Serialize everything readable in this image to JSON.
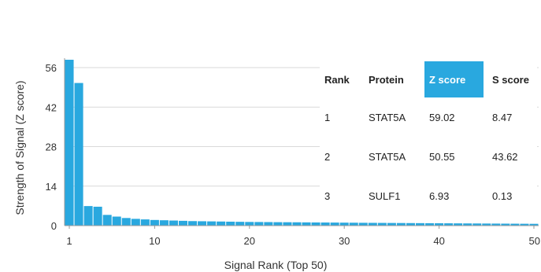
{
  "chart_data": {
    "type": "bar",
    "title": "",
    "xlabel": "Signal Rank (Top 50)",
    "ylabel": "Strength of Signal (Z score)",
    "xlim": [
      1,
      50
    ],
    "ylim": [
      0,
      56
    ],
    "xticks": [
      1,
      10,
      20,
      30,
      40,
      50
    ],
    "yticks": [
      0,
      14,
      28,
      42,
      56
    ],
    "grid": "horizontal",
    "bar_color": "#29a8df",
    "x": [
      1,
      2,
      3,
      4,
      5,
      6,
      7,
      8,
      9,
      10,
      11,
      12,
      13,
      14,
      15,
      16,
      17,
      18,
      19,
      20,
      21,
      22,
      23,
      24,
      25,
      26,
      27,
      28,
      29,
      30,
      31,
      32,
      33,
      34,
      35,
      36,
      37,
      38,
      39,
      40,
      41,
      42,
      43,
      44,
      45,
      46,
      47,
      48,
      49,
      50
    ],
    "values": [
      59.02,
      50.55,
      6.93,
      6.7,
      3.8,
      3.2,
      2.7,
      2.4,
      2.2,
      2.0,
      1.9,
      1.8,
      1.7,
      1.6,
      1.55,
      1.5,
      1.45,
      1.4,
      1.35,
      1.3,
      1.28,
      1.25,
      1.22,
      1.2,
      1.18,
      1.15,
      1.12,
      1.1,
      1.08,
      1.05,
      1.03,
      1.0,
      0.98,
      0.96,
      0.94,
      0.92,
      0.9,
      0.88,
      0.86,
      0.84,
      0.82,
      0.8,
      0.78,
      0.76,
      0.74,
      0.72,
      0.7,
      0.68,
      0.66,
      0.64
    ]
  },
  "table": {
    "highlight_color": "#29a8df",
    "headers": {
      "rank": "Rank",
      "protein": "Protein",
      "z": "Z score",
      "s": "S score"
    },
    "rows": [
      {
        "rank": "1",
        "protein": "STAT5A",
        "z": "59.02",
        "s": "8.47"
      },
      {
        "rank": "2",
        "protein": "STAT5A",
        "z": "50.55",
        "s": "43.62"
      },
      {
        "rank": "3",
        "protein": "SULF1",
        "z": "6.93",
        "s": "0.13"
      }
    ]
  }
}
